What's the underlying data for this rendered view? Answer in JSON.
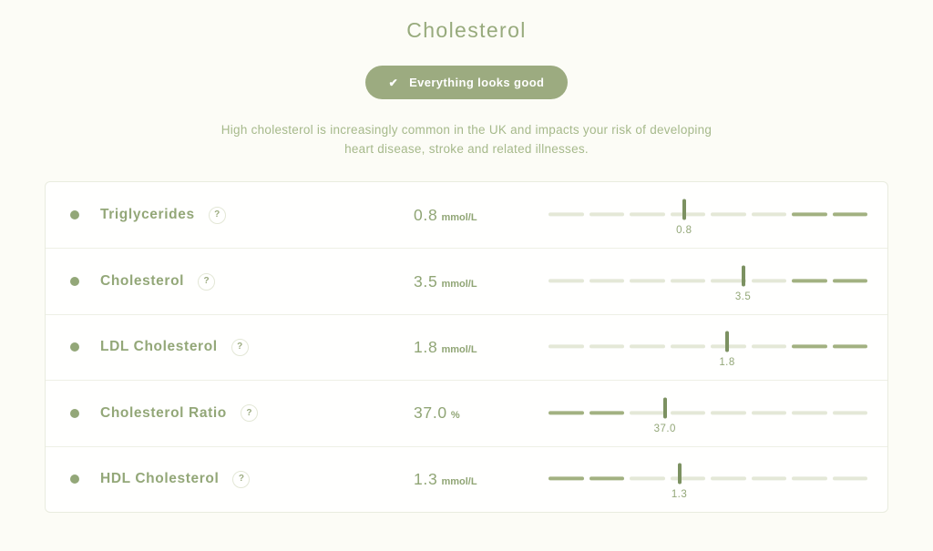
{
  "page": {
    "title": "Cholesterol",
    "badge": {
      "icon_glyph": "✔",
      "label": "Everything looks good"
    },
    "description_line1": "High cholesterol is increasingly common in the UK and impacts your risk of developing",
    "description_line2": "heart disease, stroke and related illnesses."
  },
  "help_icon_glyph": "?",
  "gauge": {
    "segments": 8
  },
  "colors": {
    "accent_green": "#93a778",
    "badge_bg": "#9cab80",
    "track_light": "#e4e8d7",
    "track_dark": "#a2b181",
    "marker": "#7c9161",
    "page_bg": "#fcfcf6"
  },
  "biomarkers": [
    {
      "name": "Triglycerides",
      "value": "0.8",
      "unit": "mmol/L",
      "marker_label": "0.8",
      "marker_percent": 42.5,
      "dark_segments": [
        6,
        7
      ],
      "status": "good"
    },
    {
      "name": "Cholesterol",
      "value": "3.5",
      "unit": "mmol/L",
      "marker_label": "3.5",
      "marker_percent": 61,
      "dark_segments": [
        6,
        7
      ],
      "status": "good"
    },
    {
      "name": "LDL Cholesterol",
      "value": "1.8",
      "unit": "mmol/L",
      "marker_label": "1.8",
      "marker_percent": 56,
      "dark_segments": [
        6,
        7
      ],
      "status": "good"
    },
    {
      "name": "Cholesterol Ratio",
      "value": "37.0",
      "unit": "%",
      "marker_label": "37.0",
      "marker_percent": 36.5,
      "dark_segments": [
        0,
        1
      ],
      "status": "good"
    },
    {
      "name": "HDL Cholesterol",
      "value": "1.3",
      "unit": "mmol/L",
      "marker_label": "1.3",
      "marker_percent": 41,
      "dark_segments": [
        0,
        1
      ],
      "status": "good"
    }
  ]
}
